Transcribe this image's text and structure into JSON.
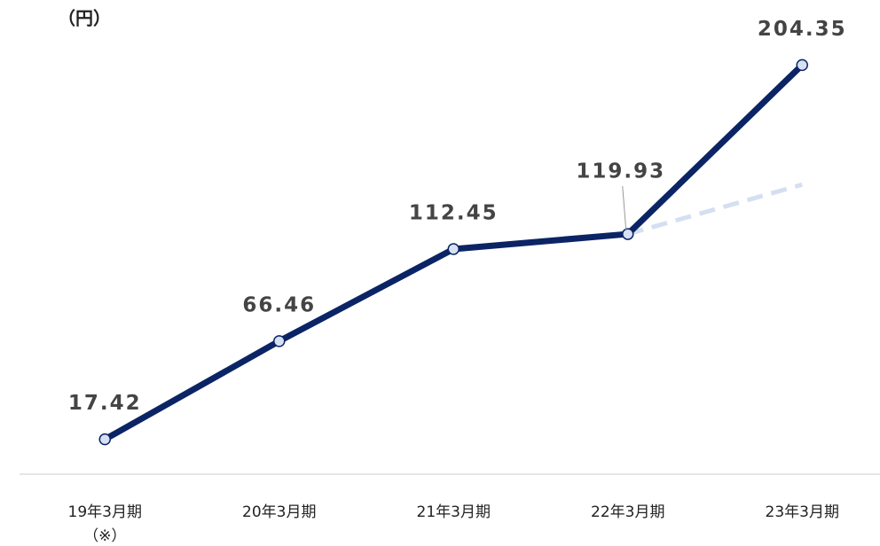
{
  "chart_data": {
    "type": "line",
    "y_label": "（円）",
    "categories": [
      "19年3月期",
      "20年3月期",
      "21年3月期",
      "22年3月期",
      "23年3月期"
    ],
    "category_note": "（※）",
    "series": [
      {
        "color": "#0b2465",
        "dashed": false,
        "values": [
          17.42,
          66.46,
          112.45,
          119.93,
          204.35
        ]
      },
      {
        "color": "#d5dff1",
        "dashed": true,
        "values": [
          null,
          null,
          null,
          119.93,
          144.63
        ]
      }
    ],
    "ylim": [
      0,
      220
    ]
  }
}
